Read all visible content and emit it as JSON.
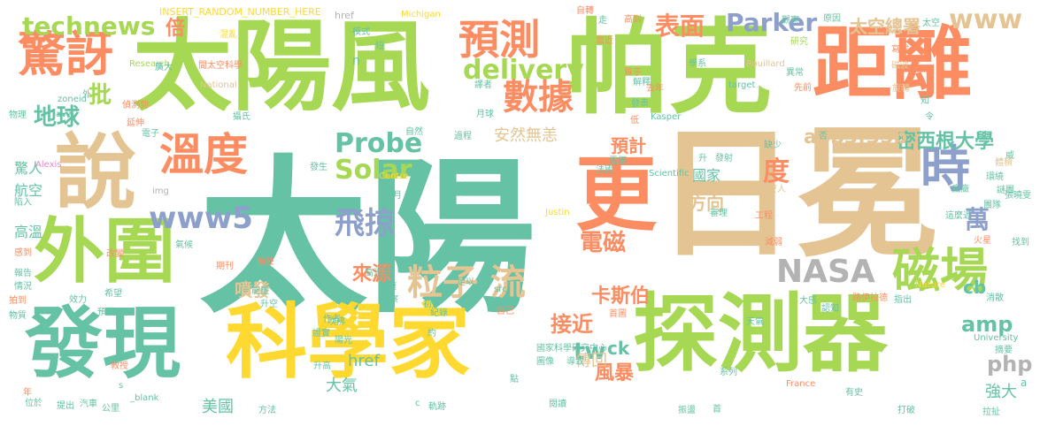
{
  "palette": {
    "green": "#a6d854",
    "salmon": "#fc8d62",
    "teal": "#66c2a5",
    "tan": "#e5c494",
    "yellow": "#ffd92f",
    "blue": "#8da0cb",
    "pink": "#e78ac3",
    "gray": "#b3b3b3"
  },
  "words": [
    {
      "text": "太陽",
      "weight": 1.0,
      "color": "teal"
    },
    {
      "text": "日冕",
      "weight": 0.85,
      "color": "tan"
    },
    {
      "text": "帕克",
      "weight": 0.82,
      "color": "green"
    },
    {
      "text": "太陽風",
      "weight": 0.8,
      "color": "green"
    },
    {
      "text": "探測器",
      "weight": 0.72,
      "color": "green"
    },
    {
      "text": "科學家",
      "weight": 0.7,
      "color": "yellow"
    },
    {
      "text": "距離",
      "weight": 0.68,
      "color": "salmon"
    },
    {
      "text": "發現",
      "weight": 0.66,
      "color": "teal"
    },
    {
      "text": "說",
      "weight": 0.62,
      "color": "tan"
    },
    {
      "text": "更",
      "weight": 0.6,
      "color": "salmon"
    },
    {
      "text": "外圍",
      "weight": 0.5,
      "color": "green"
    },
    {
      "text": "驚訝",
      "weight": 0.4,
      "color": "salmon"
    },
    {
      "text": "時",
      "weight": 0.42,
      "color": "blue"
    },
    {
      "text": "溫度",
      "weight": 0.38,
      "color": "salmon"
    },
    {
      "text": "磁場",
      "weight": 0.38,
      "color": "green"
    },
    {
      "text": "預測",
      "weight": 0.34,
      "color": "salmon"
    },
    {
      "text": "數據",
      "weight": 0.3,
      "color": "salmon"
    },
    {
      "text": "粒子 流",
      "weight": 0.3,
      "color": "tan"
    },
    {
      "text": "NASA",
      "weight": 0.28,
      "color": "gray"
    },
    {
      "text": "technews",
      "weight": 0.24,
      "color": "green"
    },
    {
      "text": "Parker",
      "weight": 0.22,
      "color": "blue"
    },
    {
      "text": "www5",
      "weight": 0.26,
      "color": "blue"
    },
    {
      "text": "delivery",
      "weight": 0.22,
      "color": "green"
    },
    {
      "text": "飛掠",
      "weight": 0.24,
      "color": "blue"
    },
    {
      "text": "Probe",
      "weight": 0.22,
      "color": "teal"
    },
    {
      "text": "Solar",
      "weight": 0.22,
      "color": "green"
    },
    {
      "text": "電磁",
      "weight": 0.2,
      "color": "salmon"
    },
    {
      "text": "地球",
      "weight": 0.2,
      "color": "teal"
    },
    {
      "text": "表面",
      "weight": 0.2,
      "color": "salmon"
    },
    {
      "text": "www",
      "weight": 0.2,
      "color": "tan"
    },
    {
      "text": "度",
      "weight": 0.22,
      "color": "salmon"
    },
    {
      "text": "萬",
      "weight": 0.2,
      "color": "blue"
    },
    {
      "text": "密西根大學",
      "weight": 0.17,
      "color": "teal"
    },
    {
      "text": "太空總署",
      "weight": 0.14,
      "color": "tan"
    },
    {
      "text": "a4b3f35b",
      "weight": 0.14,
      "color": "tan"
    },
    {
      "text": "批",
      "weight": 0.2,
      "color": "green"
    },
    {
      "text": "倍",
      "weight": 0.18,
      "color": "salmon"
    },
    {
      "text": "安然無恙",
      "weight": 0.13,
      "color": "tan"
    },
    {
      "text": "接近",
      "weight": 0.18,
      "color": "salmon"
    },
    {
      "text": "卡斯伯",
      "weight": 0.16,
      "color": "salmon"
    },
    {
      "text": "來源",
      "weight": 0.16,
      "color": "salmon"
    },
    {
      "text": "噴發",
      "weight": 0.14,
      "color": "tan"
    },
    {
      "text": "方向",
      "weight": 0.15,
      "color": "tan"
    },
    {
      "text": "國家",
      "weight": 0.12,
      "color": "teal"
    },
    {
      "text": "預計",
      "weight": 0.14,
      "color": "salmon"
    },
    {
      "text": "amp",
      "weight": 0.16,
      "color": "teal"
    },
    {
      "text": "php",
      "weight": 0.18,
      "color": "gray"
    },
    {
      "text": "tw",
      "weight": 0.18,
      "color": "teal"
    },
    {
      "text": "風暴",
      "weight": 0.16,
      "color": "salmon"
    },
    {
      "text": "強大",
      "weight": 0.14,
      "color": "teal"
    },
    {
      "text": "大氣",
      "weight": 0.14,
      "color": "teal"
    },
    {
      "text": "href",
      "weight": 0.12,
      "color": "teal"
    },
    {
      "text": "美國",
      "weight": 0.12,
      "color": "teal"
    },
    {
      "text": "傳回",
      "weight": 0.14,
      "color": "tan"
    },
    {
      "text": "ck",
      "weight": 0.13,
      "color": "teal"
    },
    {
      "text": "cb",
      "weight": 0.13,
      "color": "teal"
    },
    {
      "text": "高溫",
      "weight": 0.12,
      "color": "teal"
    },
    {
      "text": "航空",
      "weight": 0.12,
      "color": "teal"
    },
    {
      "text": "驚人",
      "weight": 0.11,
      "color": "teal"
    },
    {
      "text": "INSERT_RANDOM_NUMBER_HERE",
      "weight": 0.07,
      "color": "yellow"
    },
    {
      "text": "href",
      "weight": 0.06,
      "color": "gray"
    },
    {
      "text": "Michigan",
      "weight": 0.06,
      "color": "yellow"
    },
    {
      "text": "自轉",
      "weight": 0.06,
      "color": "salmon"
    },
    {
      "text": "高到",
      "weight": 0.06,
      "color": "salmon"
    },
    {
      "text": "靠近",
      "weight": 0.06,
      "color": "salmon"
    },
    {
      "text": "Rouillard",
      "weight": 0.06,
      "color": "tan"
    },
    {
      "text": "研究",
      "weight": 0.06,
      "color": "green"
    },
    {
      "text": "寫成",
      "weight": 0.06,
      "color": "salmon"
    },
    {
      "text": "質子",
      "weight": 0.06,
      "color": "salmon"
    },
    {
      "text": "學系",
      "weight": 0.06,
      "color": "teal"
    },
    {
      "text": "磁波",
      "weight": 0.06,
      "color": "tan"
    },
    {
      "text": "Research",
      "weight": 0.06,
      "color": "green"
    },
    {
      "text": "National",
      "weight": 0.06,
      "color": "tan"
    },
    {
      "text": "zoneid",
      "weight": 0.06,
      "color": "teal"
    },
    {
      "text": "avw",
      "weight": 0.06,
      "color": "teal"
    },
    {
      "text": "偵測到",
      "weight": 0.06,
      "color": "salmon"
    },
    {
      "text": "延伸",
      "weight": 0.06,
      "color": "salmon"
    },
    {
      "text": "物理",
      "weight": 0.06,
      "color": "teal"
    },
    {
      "text": "target",
      "weight": 0.06,
      "color": "teal"
    },
    {
      "text": "去年",
      "weight": 0.06,
      "color": "salmon"
    },
    {
      "text": "旋轉",
      "weight": 0.06,
      "color": "tan"
    },
    {
      "text": "Kasper",
      "weight": 0.06,
      "color": "teal"
    },
    {
      "text": "月球",
      "weight": 0.06,
      "color": "teal"
    },
    {
      "text": "Alexis",
      "weight": 0.06,
      "color": "pink"
    },
    {
      "text": "自然",
      "weight": 0.06,
      "color": "teal"
    },
    {
      "text": "過程",
      "weight": 0.06,
      "color": "teal"
    },
    {
      "text": "攝氏",
      "weight": 0.06,
      "color": "teal"
    },
    {
      "text": "電子",
      "weight": 0.06,
      "color": "teal"
    },
    {
      "text": "發射",
      "weight": 0.06,
      "color": "teal"
    },
    {
      "text": "缺少",
      "weight": 0.06,
      "color": "teal"
    },
    {
      "text": "體積",
      "weight": 0.06,
      "color": "tan"
    },
    {
      "text": "img",
      "weight": 0.06,
      "color": "gray"
    },
    {
      "text": "Scientific",
      "weight": 0.06,
      "color": "teal"
    },
    {
      "text": "Centre",
      "weight": 0.06,
      "color": "yellow"
    },
    {
      "text": "法國",
      "weight": 0.06,
      "color": "teal"
    },
    {
      "text": "電網",
      "weight": 0.06,
      "color": "teal"
    },
    {
      "text": "太空人",
      "weight": 0.06,
      "color": "tan"
    },
    {
      "text": "謎團",
      "weight": 0.06,
      "color": "teal"
    },
    {
      "text": "Justin",
      "weight": 0.06,
      "color": "yellow"
    },
    {
      "text": "Nature",
      "weight": 0.06,
      "color": "yellow"
    },
    {
      "text": "工程",
      "weight": 0.06,
      "color": "salmon"
    },
    {
      "text": "減弱",
      "weight": 0.06,
      "color": "salmon"
    },
    {
      "text": "火星",
      "weight": 0.06,
      "color": "salmon"
    },
    {
      "text": "找到",
      "weight": 0.06,
      "color": "teal"
    },
    {
      "text": "高溫度",
      "weight": 0.06,
      "color": "teal"
    },
    {
      "text": "加速",
      "weight": 0.06,
      "color": "teal"
    },
    {
      "text": "初步",
      "weight": 0.06,
      "color": "teal"
    },
    {
      "text": "觀察",
      "weight": 0.06,
      "color": "teal"
    },
    {
      "text": "足以",
      "weight": 0.06,
      "color": "teal"
    },
    {
      "text": "紀錄",
      "weight": 0.06,
      "color": "teal"
    },
    {
      "text": "自己",
      "weight": 0.06,
      "color": "salmon"
    },
    {
      "text": "首圖",
      "weight": 0.06,
      "color": "salmon"
    },
    {
      "text": "路伊拉德",
      "weight": 0.06,
      "color": "salmon"
    },
    {
      "text": "指出",
      "weight": 0.06,
      "color": "teal"
    },
    {
      "text": "認知",
      "weight": 0.06,
      "color": "teal"
    },
    {
      "text": "消散",
      "weight": 0.06,
      "color": "teal"
    },
    {
      "text": "能量",
      "weight": 0.06,
      "color": "teal"
    },
    {
      "text": "升空",
      "weight": 0.06,
      "color": "teal"
    },
    {
      "text": "作者",
      "weight": 0.06,
      "color": "teal"
    },
    {
      "text": "src",
      "weight": 0.06,
      "color": "teal"
    },
    {
      "text": "國家科學研究中心",
      "weight": 0.06,
      "color": "teal"
    },
    {
      "text": "University",
      "weight": 0.06,
      "color": "teal"
    },
    {
      "text": "摘要",
      "weight": 0.06,
      "color": "teal"
    },
    {
      "text": "天氣",
      "weight": 0.06,
      "color": "teal"
    },
    {
      "text": "大感",
      "weight": 0.06,
      "color": "teal"
    },
    {
      "text": "升高",
      "weight": 0.06,
      "color": "teal"
    },
    {
      "text": "陽光",
      "weight": 0.06,
      "color": "teal"
    },
    {
      "text": "系列",
      "weight": 0.06,
      "color": "teal"
    },
    {
      "text": "France",
      "weight": 0.06,
      "color": "salmon"
    },
    {
      "text": "有史",
      "weight": 0.06,
      "color": "teal"
    },
    {
      "text": "打破",
      "weight": 0.06,
      "color": "teal"
    },
    {
      "text": "拉扯",
      "weight": 0.06,
      "color": "teal"
    },
    {
      "text": "振盪",
      "weight": 0.06,
      "color": "teal"
    },
    {
      "text": "閱讀",
      "weight": 0.06,
      "color": "teal"
    },
    {
      "text": "軌跡",
      "weight": 0.06,
      "color": "teal"
    },
    {
      "text": "方法",
      "weight": 0.06,
      "color": "teal"
    },
    {
      "text": "公里",
      "weight": 0.06,
      "color": "teal"
    },
    {
      "text": "汽車",
      "weight": 0.06,
      "color": "teal"
    },
    {
      "text": "提出",
      "weight": 0.06,
      "color": "teal"
    },
    {
      "text": "位於",
      "weight": 0.06,
      "color": "teal"
    },
    {
      "text": "_blank",
      "weight": 0.06,
      "color": "teal"
    },
    {
      "text": "教授",
      "weight": 0.06,
      "color": "salmon"
    },
    {
      "text": "預期",
      "weight": 0.06,
      "color": "teal"
    },
    {
      "text": "希望",
      "weight": 0.06,
      "color": "teal"
    },
    {
      "text": "物質",
      "weight": 0.06,
      "color": "teal"
    },
    {
      "text": "拍到",
      "weight": 0.06,
      "color": "salmon"
    },
    {
      "text": "情況",
      "weight": 0.06,
      "color": "teal"
    },
    {
      "text": "報告",
      "weight": 0.06,
      "color": "teal"
    },
    {
      "text": "感到",
      "weight": 0.06,
      "color": "salmon"
    },
    {
      "text": "陷入",
      "weight": 0.06,
      "color": "teal"
    },
    {
      "text": "期刊",
      "weight": 0.06,
      "color": "salmon"
    },
    {
      "text": "前往",
      "weight": 0.06,
      "color": "salmon"
    },
    {
      "text": "改變",
      "weight": 0.06,
      "color": "salmon"
    },
    {
      "text": "效力",
      "weight": 0.06,
      "color": "teal"
    },
    {
      "text": "吹拂",
      "weight": 0.06,
      "color": "teal"
    },
    {
      "text": "證實",
      "weight": 0.06,
      "color": "teal"
    },
    {
      "text": "導致",
      "weight": 0.06,
      "color": "teal"
    },
    {
      "text": "圖像",
      "weight": 0.06,
      "color": "teal"
    },
    {
      "text": "氣候",
      "weight": 0.06,
      "color": "teal"
    },
    {
      "text": "混亂",
      "weight": 0.06,
      "color": "yellow"
    },
    {
      "text": "模式",
      "weight": 0.06,
      "color": "teal"
    },
    {
      "text": "間太空科學",
      "weight": 0.06,
      "color": "salmon"
    },
    {
      "text": "發表",
      "weight": 0.06,
      "color": "teal"
    },
    {
      "text": "解釋",
      "weight": 0.06,
      "color": "teal"
    },
    {
      "text": "譯者",
      "weight": 0.06,
      "color": "teal"
    },
    {
      "text": "先前",
      "weight": 0.06,
      "color": "salmon"
    },
    {
      "text": "異常",
      "weight": 0.06,
      "color": "teal"
    },
    {
      "text": "環繞",
      "weight": 0.06,
      "color": "teal"
    },
    {
      "text": "團隊",
      "weight": 0.06,
      "color": "teal"
    },
    {
      "text": "張曉雯",
      "weight": 0.06,
      "color": "teal"
    },
    {
      "text": "這麼近",
      "weight": 0.06,
      "color": "teal"
    },
    {
      "text": "瘋癥",
      "weight": 0.06,
      "color": "teal"
    },
    {
      "text": "審理",
      "weight": 0.06,
      "color": "teal"
    },
    {
      "text": "原因",
      "weight": 0.06,
      "color": "teal"
    },
    {
      "text": "太空",
      "weight": 0.06,
      "color": "teal"
    },
    {
      "text": "觀察",
      "weight": 0.06,
      "color": "teal"
    },
    {
      "text": "廣大",
      "weight": 0.06,
      "color": "teal"
    },
    {
      "text": "外",
      "weight": 0.06,
      "color": "teal"
    },
    {
      "text": "短",
      "weight": 0.06,
      "color": "teal"
    },
    {
      "text": "走",
      "weight": 0.06,
      "color": "teal"
    },
    {
      "text": "低",
      "weight": 0.06,
      "color": "salmon"
    },
    {
      "text": "知",
      "weight": 0.06,
      "color": "teal"
    },
    {
      "text": "令",
      "weight": 0.06,
      "color": "teal"
    },
    {
      "text": "發生",
      "weight": 0.06,
      "color": "teal"
    },
    {
      "text": "升",
      "weight": 0.06,
      "color": "teal"
    },
    {
      "text": "月",
      "weight": 0.06,
      "color": "teal"
    },
    {
      "text": "否",
      "weight": 0.06,
      "color": "teal"
    },
    {
      "text": "約",
      "weight": 0.06,
      "color": "teal"
    },
    {
      "text": "首",
      "weight": 0.06,
      "color": "teal"
    },
    {
      "text": "點",
      "weight": 0.06,
      "color": "teal"
    },
    {
      "text": "年",
      "weight": 0.06,
      "color": "salmon"
    },
    {
      "text": "篇",
      "weight": 0.06,
      "color": "teal"
    },
    {
      "text": "威",
      "weight": 0.06,
      "color": "teal"
    },
    {
      "text": "a",
      "weight": 0.06,
      "color": "teal"
    },
    {
      "text": "n",
      "weight": 0.06,
      "color": "teal"
    },
    {
      "text": "s",
      "weight": 0.06,
      "color": "teal"
    },
    {
      "text": "c",
      "weight": 0.06,
      "color": "teal"
    }
  ]
}
